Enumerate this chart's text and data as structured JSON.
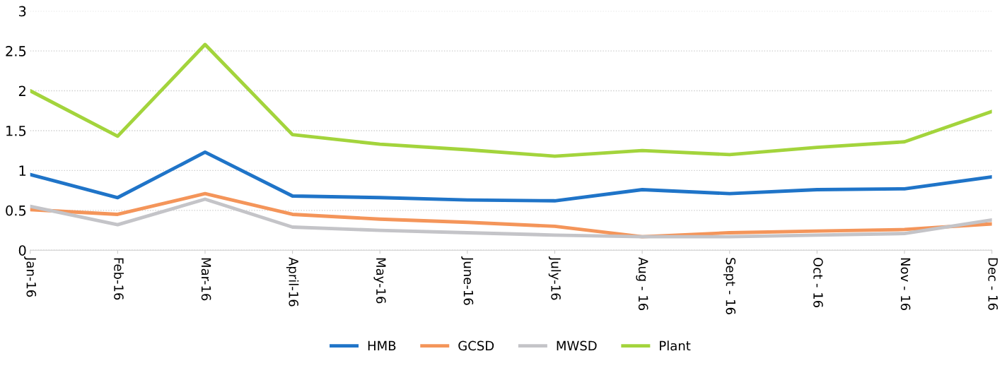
{
  "chart_data": {
    "type": "line",
    "categories": [
      "Jan-16",
      "Feb-16",
      "Mar-16",
      "April-16",
      "May-16",
      "June-16",
      "July-16",
      "Aug - 16",
      "Sept - 16",
      "Oct - 16",
      "Nov - 16",
      "Dec - 16"
    ],
    "series": [
      {
        "name": "HMB",
        "color": "#1f74c8",
        "values": [
          0.95,
          0.66,
          1.23,
          0.68,
          0.66,
          0.63,
          0.62,
          0.76,
          0.71,
          0.76,
          0.77,
          0.92
        ]
      },
      {
        "name": "GCSD",
        "color": "#f4955a",
        "values": [
          0.51,
          0.45,
          0.71,
          0.45,
          0.39,
          0.35,
          0.3,
          0.17,
          0.22,
          0.24,
          0.26,
          0.33
        ]
      },
      {
        "name": "MWSD",
        "color": "#c4c4c8",
        "values": [
          0.55,
          0.32,
          0.64,
          0.29,
          0.25,
          0.22,
          0.19,
          0.17,
          0.17,
          0.19,
          0.21,
          0.38
        ]
      },
      {
        "name": "Plant",
        "color": "#a3d43c",
        "values": [
          2.0,
          1.43,
          2.58,
          1.45,
          1.33,
          1.26,
          1.18,
          1.25,
          1.2,
          1.29,
          1.36,
          1.74
        ]
      }
    ],
    "ylim": [
      0,
      3
    ],
    "yticks": [
      0,
      0.5,
      1,
      1.5,
      2,
      2.5,
      3
    ],
    "grid": "y",
    "legend": "bottom",
    "marker": "none",
    "line_style": "solid"
  }
}
